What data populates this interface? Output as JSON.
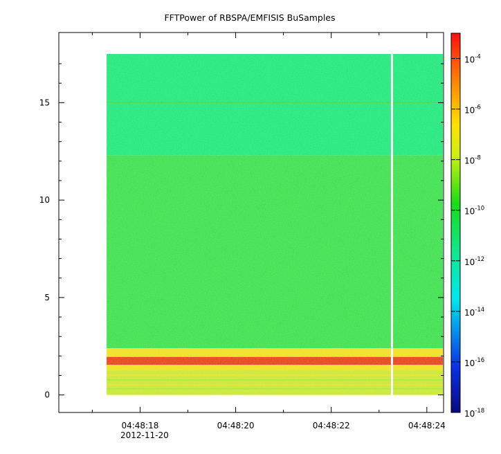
{
  "chart_data": {
    "type": "heatmap",
    "title": "FFTPower of RBSPA/EMFISIS  BuSamples",
    "x": {
      "tick_labels": [
        "04:48:18",
        "04:48:20",
        "04:48:22",
        "04:48:24"
      ],
      "tick_values_s": [
        18,
        20,
        22,
        24
      ],
      "date_label": "2012-11-20",
      "minor_ticks_s": [
        17,
        19,
        21,
        23
      ],
      "range_s": [
        16.3,
        24.35
      ],
      "data_range_s": [
        17.3,
        24.35
      ],
      "gap_s": 23.27
    },
    "y": {
      "tick_labels": [
        "0",
        "5",
        "10",
        "15"
      ],
      "tick_values": [
        0,
        5,
        10,
        15
      ],
      "range": [
        -0.9,
        18.6
      ],
      "data_range": [
        0,
        17.5
      ]
    },
    "colorbar": {
      "scale": "log",
      "range": [
        "1e-18",
        "1e-3"
      ],
      "tick_base": "10",
      "tick_exponents": [
        "-4",
        "-6",
        "-8",
        "-10",
        "-12",
        "-14",
        "-16",
        "-18"
      ]
    },
    "bands": [
      {
        "y_from": 12.3,
        "y_to": 17.5,
        "level": "1e-12"
      },
      {
        "y_from": 2.4,
        "y_to": 12.3,
        "level": "1e-10"
      },
      {
        "y_from": 1.25,
        "y_to": 2.4,
        "level": "1e-8"
      },
      {
        "y_from": 1.55,
        "y_to": 1.95,
        "level": "1e-6"
      },
      {
        "y_from": 0,
        "y_to": 1.25,
        "level": "1e-9"
      }
    ],
    "grid": false
  },
  "colors": {
    "background": "#ffffff",
    "upper_band": "#1fe87a",
    "middle_band": "#3ce04c",
    "red_band": "#e8401c",
    "lower_band": "#c8e830"
  }
}
